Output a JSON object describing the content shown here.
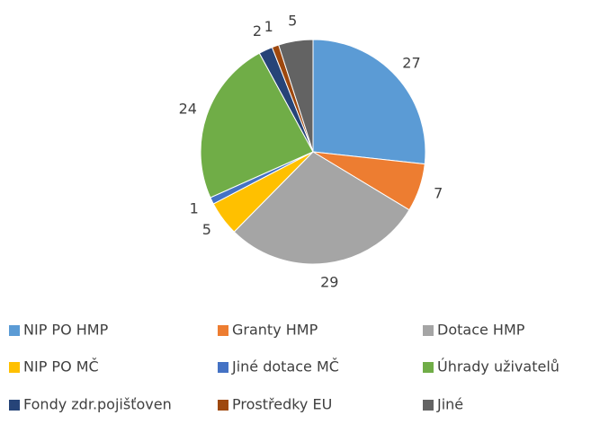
{
  "chart_data": {
    "type": "pie",
    "categories": [
      "NIP PO HMP",
      "Granty HMP",
      "Dotace HMP",
      "NIP PO MČ",
      "Jiné dotace MČ",
      "Úhrady uživatelů",
      "Fondy zdr.pojišťoven",
      "Prostředky EU",
      "Jiné"
    ],
    "values": [
      27,
      7,
      29,
      5,
      1,
      24,
      2,
      1,
      5
    ],
    "colors": [
      "#5b9bd5",
      "#ed7d31",
      "#a5a5a5",
      "#ffc000",
      "#4472c4",
      "#70ad47",
      "#264478",
      "#9e480e",
      "#636363"
    ],
    "legend": "bottom"
  }
}
